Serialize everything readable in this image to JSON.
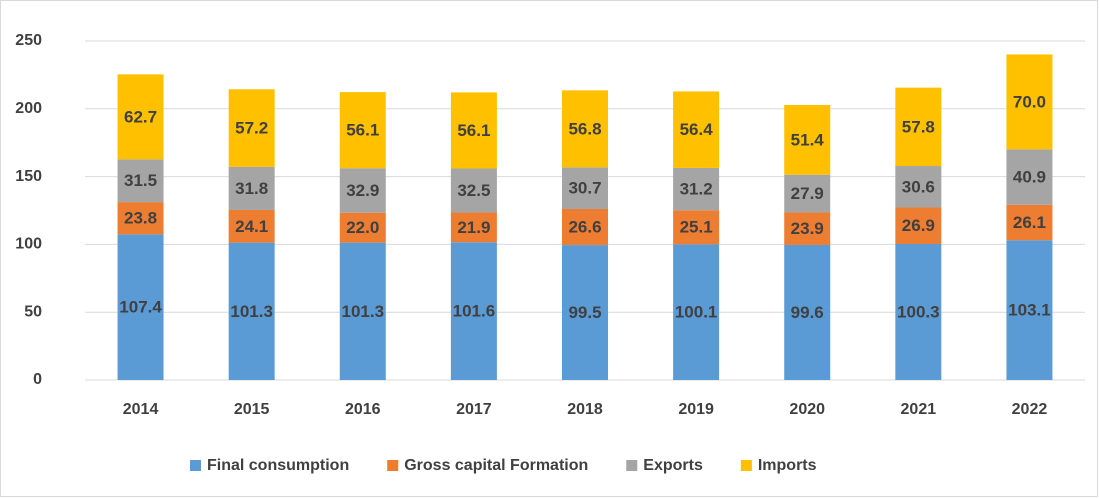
{
  "chart_data": {
    "type": "stacked-bar",
    "categories": [
      "2014",
      "2015",
      "2016",
      "2017",
      "2018",
      "2019",
      "2020",
      "2021",
      "2022"
    ],
    "series": [
      {
        "name": "Final consumption",
        "color": "#5b9bd5",
        "values": [
          107.4,
          101.3,
          101.3,
          101.6,
          99.5,
          100.1,
          99.6,
          100.3,
          103.1
        ]
      },
      {
        "name": "Gross capital Formation",
        "color": "#ed7d31",
        "values": [
          23.8,
          24.1,
          22.0,
          21.9,
          26.6,
          25.1,
          23.9,
          26.9,
          26.1
        ],
        "value_labels": [
          "23.8",
          "24.1",
          "22.0",
          "21.9",
          "26.6",
          "25.1",
          "23.9",
          "26.9",
          "26.1"
        ]
      },
      {
        "name": "Exports",
        "color": "#a5a5a5",
        "values": [
          31.5,
          31.8,
          32.9,
          32.5,
          30.7,
          31.2,
          27.9,
          30.6,
          40.9
        ]
      },
      {
        "name": "Imports",
        "color": "#ffc000",
        "values": [
          62.7,
          57.2,
          56.1,
          56.1,
          56.8,
          56.4,
          51.4,
          57.8,
          70.0
        ],
        "value_labels": [
          "62.7",
          "57.2",
          "56.1",
          "56.1",
          "56.8",
          "56.4",
          "51.4",
          "57.8",
          "70.0"
        ]
      }
    ],
    "ylim": [
      0,
      250
    ],
    "yticks": [
      0,
      50,
      100,
      150,
      200,
      250
    ],
    "grid": true,
    "legend": "bottom"
  }
}
